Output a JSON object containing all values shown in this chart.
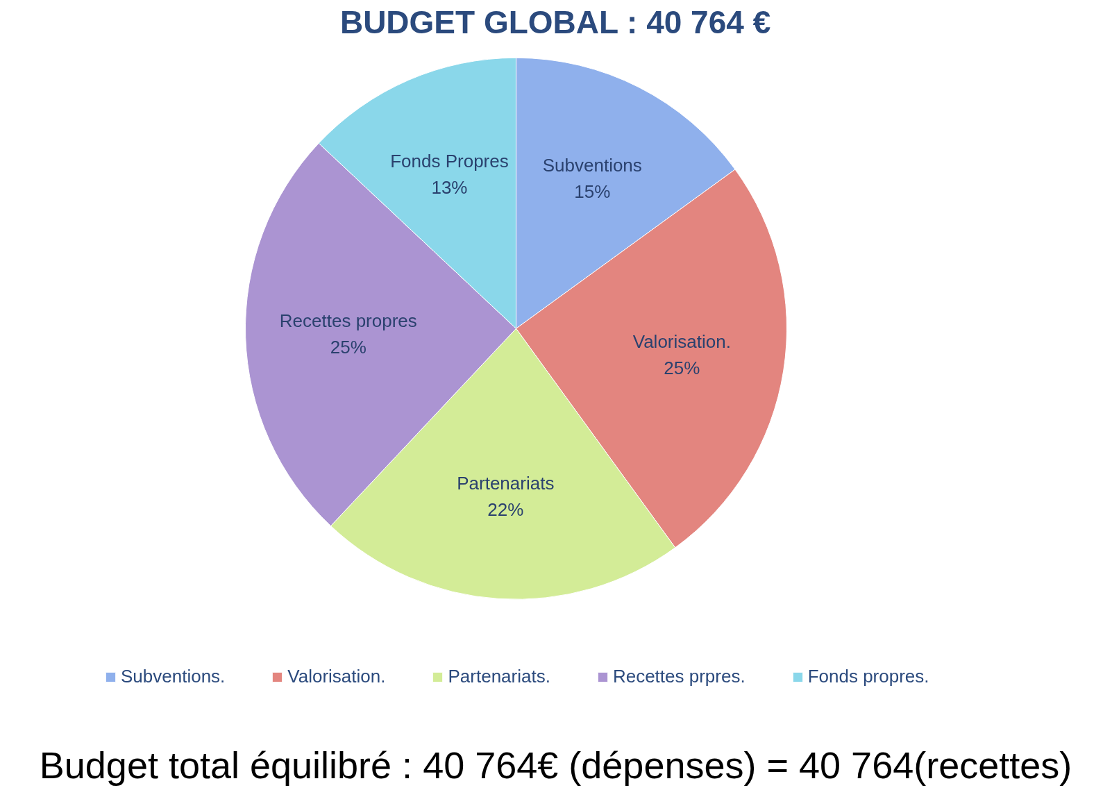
{
  "chart_data": {
    "type": "pie",
    "title": "BUDGET GLOBAL : 40 764 €",
    "categories": [
      "Subventions.",
      "Valorisation.",
      "Partenariats.",
      "Recettes prpres.",
      "Fonds propres."
    ],
    "values": [
      15,
      25,
      22,
      25,
      13
    ],
    "colors": [
      "#8fb0ec",
      "#e3857f",
      "#d3ec97",
      "#ab94d2",
      "#8ad7ea"
    ],
    "value_labels": [
      "Subventions\n15%",
      "Valorisation.\n25%",
      "Partenariats\n22%",
      "Recettes propres\n25%",
      "Fonds Propres\n13%"
    ],
    "legend": "bottom",
    "annotations": [
      "Budget total équilibré : 40 764€ (dépenses) = 40 764(recettes)"
    ]
  }
}
